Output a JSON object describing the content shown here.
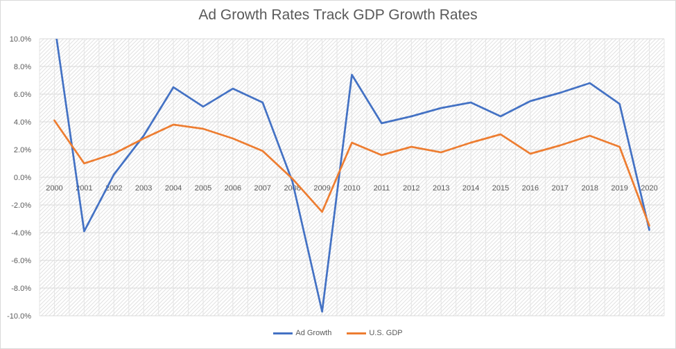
{
  "chart_data": {
    "type": "line",
    "title": "Ad Growth Rates Track GDP Growth Rates",
    "xlabel": "",
    "ylabel": "",
    "categories": [
      "2000",
      "2001",
      "2002",
      "2003",
      "2004",
      "2005",
      "2006",
      "2007",
      "2008",
      "2009",
      "2010",
      "2011",
      "2012",
      "2013",
      "2014",
      "2015",
      "2016",
      "2017",
      "2018",
      "2019",
      "2020"
    ],
    "ylim": [
      -10,
      10
    ],
    "ytick_step": 2,
    "ytick_labels": [
      "10.0%",
      "8.0%",
      "6.0%",
      "4.0%",
      "2.0%",
      "0.0%",
      "-2.0%",
      "-4.0%",
      "-6.0%",
      "-8.0%",
      "-10.0%"
    ],
    "grid": true,
    "legend_position": "bottom",
    "series": [
      {
        "name": "Ad Growth",
        "color": "#4472c4",
        "values": [
          11.1,
          -3.9,
          0.2,
          3.0,
          6.5,
          5.1,
          6.4,
          5.4,
          -0.3,
          -9.7,
          7.4,
          3.9,
          4.4,
          5.0,
          5.4,
          4.4,
          5.5,
          6.1,
          6.8,
          5.3,
          -3.8
        ]
      },
      {
        "name": "U.S. GDP",
        "color": "#ed7d31",
        "values": [
          4.1,
          1.0,
          1.7,
          2.8,
          3.8,
          3.5,
          2.8,
          1.9,
          -0.1,
          -2.5,
          2.5,
          1.6,
          2.2,
          1.8,
          2.5,
          3.1,
          1.7,
          2.3,
          3.0,
          2.2,
          -3.5
        ]
      }
    ]
  }
}
